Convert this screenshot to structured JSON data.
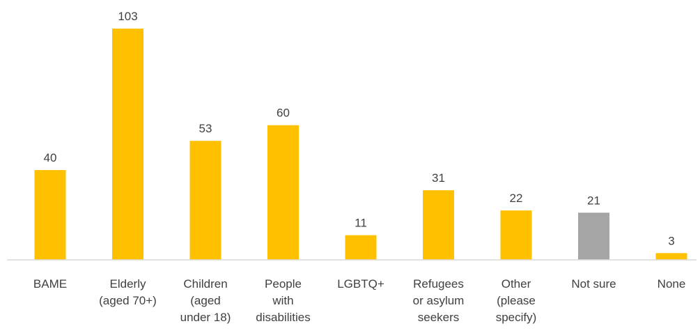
{
  "chart_data": {
    "type": "bar",
    "title": "",
    "xlabel": "",
    "ylabel": "",
    "ylim": [
      0,
      110
    ],
    "grid": false,
    "legend": "none",
    "categories": [
      [
        "BAME"
      ],
      [
        "Elderly",
        "(aged 70+)"
      ],
      [
        "Children",
        "(aged",
        "under 18)"
      ],
      [
        "People",
        "with",
        "disabilities"
      ],
      [
        "LGBTQ+"
      ],
      [
        "Refugees",
        "or asylum",
        "seekers"
      ],
      [
        "Other",
        "(please",
        "specify)"
      ],
      [
        "Not sure"
      ],
      [
        "None"
      ]
    ],
    "values": [
      40,
      103,
      53,
      60,
      11,
      31,
      22,
      21,
      3
    ],
    "value_labels": [
      "40",
      "103",
      "53",
      "60",
      "11",
      "31",
      "22",
      "21",
      "3"
    ],
    "bar_colors": [
      "#FFC000",
      "#FFC000",
      "#FFC000",
      "#FFC000",
      "#FFC000",
      "#FFC000",
      "#FFC000",
      "#A5A5A5",
      "#FFC000"
    ]
  },
  "colors": {
    "axis": "#D9D9D9",
    "text": "#404040"
  }
}
